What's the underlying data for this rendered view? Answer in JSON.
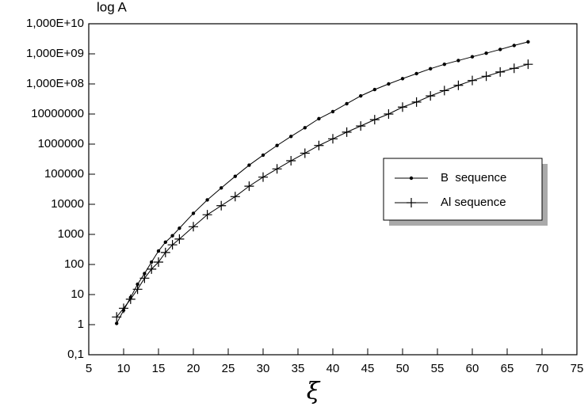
{
  "chart_data": {
    "type": "line",
    "y_label": "log A",
    "x_label": "ξ",
    "x": [
      9,
      10,
      11,
      12,
      13,
      14,
      15,
      16,
      17,
      18,
      20,
      22,
      24,
      26,
      28,
      30,
      32,
      34,
      36,
      38,
      40,
      42,
      44,
      46,
      48,
      50,
      52,
      54,
      56,
      58,
      60,
      62,
      64,
      66,
      68
    ],
    "series": [
      {
        "name": "B  sequence",
        "color": "#000000",
        "marker": "dot",
        "values": [
          1.1,
          3,
          8,
          22,
          50,
          120,
          280,
          550,
          900,
          1600,
          5000,
          14000,
          35000,
          85000,
          200000,
          430000,
          900000,
          1800000,
          3500000,
          7000000,
          12000000,
          22000000,
          40000000,
          65000000,
          100000000,
          150000000,
          220000000,
          320000000,
          450000000,
          600000000,
          800000000,
          1050000000,
          1400000000,
          1900000000,
          2500000000
        ]
      },
      {
        "name": "Al sequence",
        "color": "#000000",
        "marker": "plus",
        "values": [
          1.8,
          3.5,
          7,
          15,
          35,
          70,
          120,
          250,
          450,
          700,
          1800,
          4500,
          9000,
          18000,
          40000,
          80000,
          150000,
          280000,
          500000,
          900000,
          1500000,
          2500000,
          4000000,
          6500000,
          10000000,
          17000000,
          25000000,
          40000000,
          60000000,
          90000000,
          130000000,
          180000000,
          250000000,
          330000000,
          450000000
        ]
      }
    ],
    "xlim": [
      5,
      75
    ],
    "xticks": [
      5,
      10,
      15,
      20,
      25,
      30,
      35,
      40,
      45,
      50,
      55,
      60,
      65,
      70,
      75
    ],
    "ylim": [
      0.1,
      10000000000
    ],
    "y_log": true,
    "yticks": [
      {
        "value": 0.1,
        "label": "0,1"
      },
      1,
      10,
      100,
      1000,
      10000,
      100000,
      1000000,
      10000000,
      {
        "value": 100000000,
        "label": "1,000E+08"
      },
      {
        "value": 1000000000,
        "label": "1,000E+09"
      },
      {
        "value": 10000000000,
        "label": "1,000E+10"
      }
    ],
    "legend": "right"
  }
}
